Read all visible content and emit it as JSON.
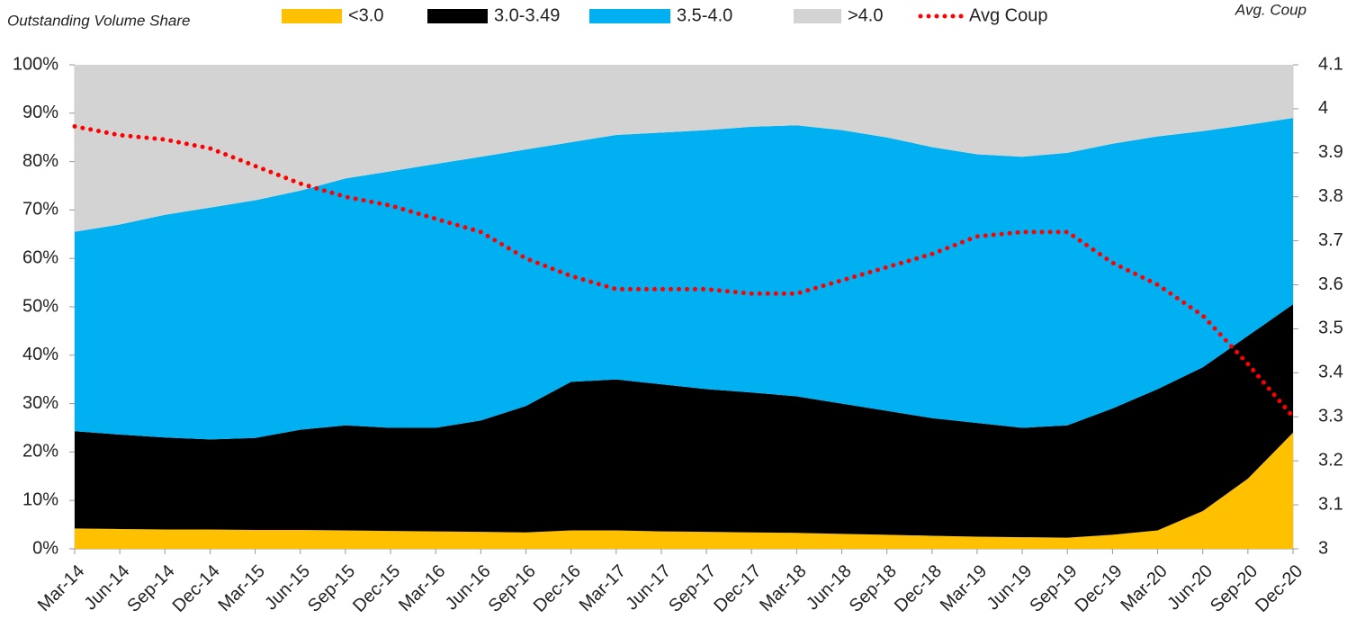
{
  "chart_data": {
    "type": "stacked_area",
    "ylabel": "Outstanding Volume Share",
    "y2label": "Avg. Coup",
    "categories": [
      "Mar-14",
      "Jun-14",
      "Sep-14",
      "Dec-14",
      "Mar-15",
      "Jun-15",
      "Sep-15",
      "Dec-15",
      "Mar-16",
      "Jun-16",
      "Sep-16",
      "Dec-16",
      "Mar-17",
      "Jun-17",
      "Sep-17",
      "Dec-17",
      "Mar-18",
      "Jun-18",
      "Sep-18",
      "Dec-18",
      "Mar-19",
      "Jun-19",
      "Sep-19",
      "Dec-19",
      "Mar-20",
      "Jun-20",
      "Sep-20",
      "Dec-20"
    ],
    "series": [
      {
        "name": "<3.0",
        "color": "#FFC000",
        "values": [
          4.2,
          4.1,
          4.0,
          4.0,
          3.9,
          3.9,
          3.8,
          3.7,
          3.6,
          3.5,
          3.4,
          3.8,
          3.8,
          3.6,
          3.5,
          3.4,
          3.3,
          3.1,
          2.9,
          2.7,
          2.5,
          2.4,
          2.3,
          2.9,
          3.8,
          7.8,
          14.5,
          24.0
        ]
      },
      {
        "name": "3.0-3.49",
        "color": "#000000",
        "values": [
          20.1,
          19.5,
          19.0,
          18.6,
          19.0,
          20.7,
          21.7,
          21.3,
          21.4,
          23.0,
          26.1,
          30.7,
          31.2,
          30.4,
          29.5,
          28.9,
          28.2,
          26.9,
          25.6,
          24.3,
          23.5,
          22.6,
          23.2,
          26.1,
          29.2,
          29.7,
          29.5,
          26.5
        ]
      },
      {
        "name": "3.5-4.0",
        "color": "#00B0F0",
        "values": [
          41.2,
          43.4,
          46.0,
          47.9,
          49.1,
          49.4,
          51.0,
          53.0,
          54.5,
          54.5,
          53.0,
          49.5,
          50.5,
          52.0,
          53.5,
          54.9,
          56.0,
          56.5,
          56.5,
          56.0,
          55.5,
          56.0,
          56.3,
          54.7,
          52.2,
          48.8,
          43.6,
          38.5
        ]
      },
      {
        "name": ">4.0",
        "color": "#D3D3D3",
        "values": [
          34.5,
          33.0,
          31.0,
          29.5,
          28.0,
          26.0,
          23.5,
          22.0,
          20.5,
          19.0,
          17.5,
          16.0,
          14.5,
          14.0,
          13.5,
          12.8,
          12.5,
          13.5,
          15.0,
          17.0,
          18.5,
          19.0,
          18.2,
          16.3,
          14.8,
          13.7,
          12.4,
          11.0
        ]
      },
      {
        "name": "Avg Coup",
        "type": "line",
        "axis": "y2",
        "style": "dotted",
        "color": "#FF0000",
        "values": [
          3.96,
          3.94,
          3.93,
          3.91,
          3.87,
          3.83,
          3.8,
          3.78,
          3.75,
          3.72,
          3.66,
          3.62,
          3.59,
          3.59,
          3.59,
          3.58,
          3.58,
          3.61,
          3.64,
          3.67,
          3.71,
          3.72,
          3.72,
          3.65,
          3.6,
          3.53,
          3.42,
          3.3
        ]
      }
    ],
    "ylim": [
      0,
      100
    ],
    "yticks": [
      {
        "value": 0,
        "label": "0%"
      },
      {
        "value": 10,
        "label": "10%"
      },
      {
        "value": 20,
        "label": "20%"
      },
      {
        "value": 30,
        "label": "30%"
      },
      {
        "value": 40,
        "label": "40%"
      },
      {
        "value": 50,
        "label": "50%"
      },
      {
        "value": 60,
        "label": "60%"
      },
      {
        "value": 70,
        "label": "70%"
      },
      {
        "value": 80,
        "label": "80%"
      },
      {
        "value": 90,
        "label": "90%"
      },
      {
        "value": 100,
        "label": "100%"
      }
    ],
    "y2lim": [
      3,
      4.1
    ],
    "y2ticks": [
      3,
      3.1,
      3.2,
      3.3,
      3.4,
      3.5,
      3.6,
      3.7,
      3.8,
      3.9,
      4,
      4.1
    ],
    "grid": false
  }
}
